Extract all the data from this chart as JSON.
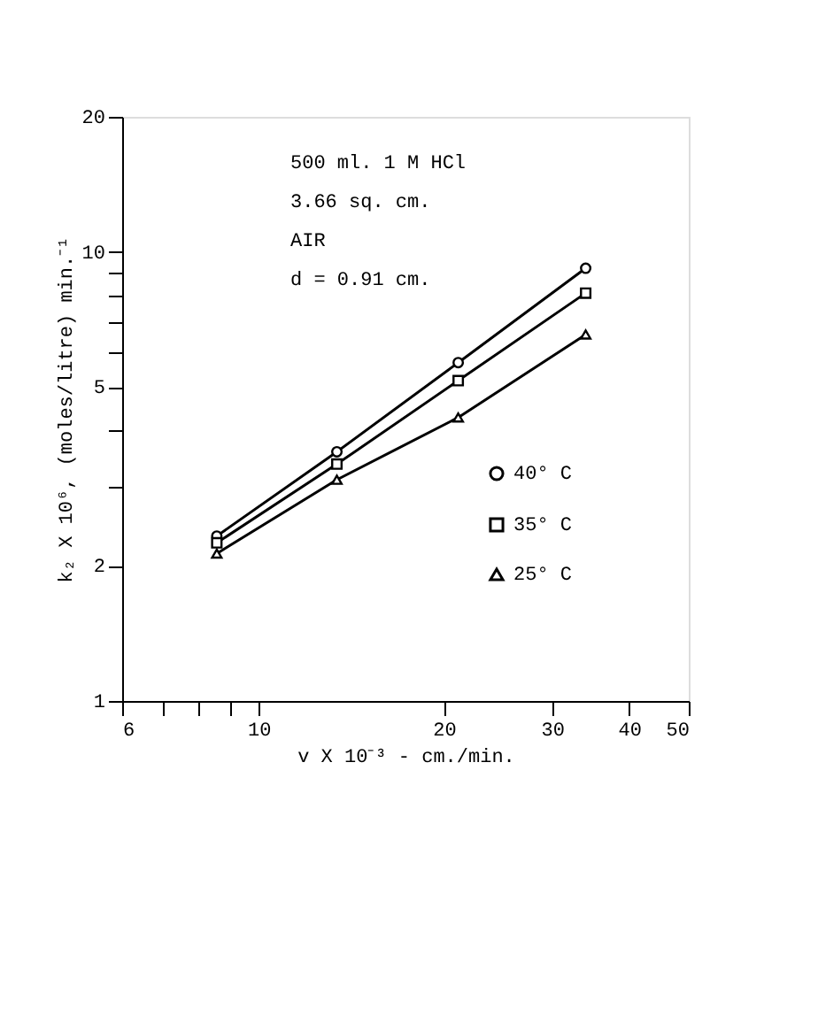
{
  "chart_data": {
    "type": "line",
    "xlabel": "v X 10⁻³ - cm./min.",
    "ylabel": "k₂ X 10⁶, (moles/litre) min.⁻¹",
    "log": "xy",
    "xlim": [
      6,
      50
    ],
    "ylim": [
      1,
      20
    ],
    "xticks": [
      6,
      {
        "value": 7,
        "label": null
      },
      {
        "value": 8,
        "label": null
      },
      {
        "value": 9,
        "label": null
      },
      10,
      20,
      30,
      40,
      50
    ],
    "yticks": [
      1,
      2,
      {
        "value": 3,
        "label": null
      },
      {
        "value": 4,
        "label": null
      },
      5,
      {
        "value": 6,
        "label": null
      },
      {
        "value": 7,
        "label": null
      },
      {
        "value": 8,
        "label": null
      },
      {
        "value": 9,
        "label": null
      },
      10,
      20
    ],
    "grid": false,
    "legend": "bottom right",
    "line_style": "solid",
    "x": [
      8.55,
      13.4,
      21.1,
      34
    ],
    "series": [
      {
        "name": "40° C",
        "color": "#000000",
        "marker": "circle",
        "values": [
          2.33,
          3.59,
          5.67,
          9.2
        ]
      },
      {
        "name": "35° C",
        "color": "#000000",
        "marker": "square",
        "values": [
          2.25,
          3.37,
          5.17,
          8.1
        ]
      },
      {
        "name": "25° C",
        "color": "#000000",
        "marker": "triangle",
        "values": [
          2.13,
          3.11,
          4.28,
          6.55
        ]
      }
    ],
    "annotations": [
      "500 ml. 1 M HCl",
      "3.66 sq. cm.",
      "AIR",
      "d = 0.91 cm."
    ]
  }
}
